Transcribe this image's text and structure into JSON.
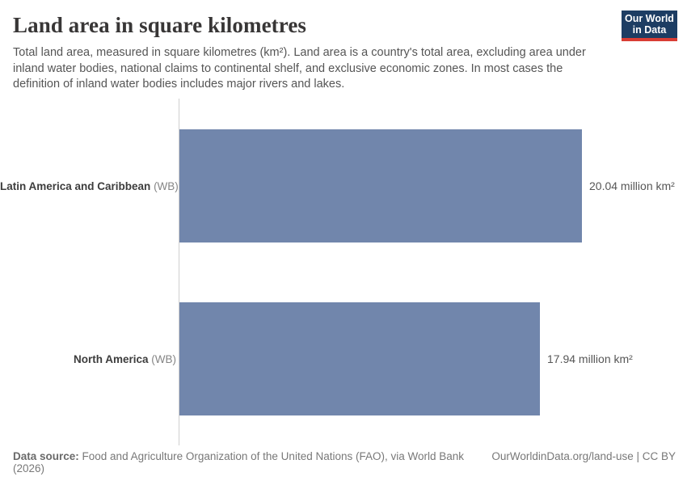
{
  "header": {
    "title": "Land area in square kilometres",
    "subtitle": "Total land area, measured in square kilometres (km²). Land area is a country's total area, excluding area under inland water bodies, national claims to continental shelf, and exclusive economic zones. In most cases the definition of inland water bodies includes major rivers and lakes.",
    "logo": {
      "line1": "Our World",
      "line2": "in Data"
    }
  },
  "chart_data": {
    "type": "bar",
    "orientation": "horizontal",
    "title": "Land area in square kilometres",
    "unit": "million km²",
    "grid": false,
    "xlim": [
      0,
      20.04
    ],
    "categories": [
      "Latin America and Caribbean (WB)",
      "North America (WB)"
    ],
    "values": [
      20.04,
      17.94
    ],
    "bar_color": "#7186ac",
    "series": [
      {
        "name": "Latin America and Caribbean",
        "suffix": " (WB)",
        "value": 20.04,
        "value_label": "20.04 million km²"
      },
      {
        "name": "North America",
        "suffix": " (WB)",
        "value": 17.94,
        "value_label": "17.94 million km²"
      }
    ]
  },
  "footer": {
    "source_label": "Data source:",
    "source_text": " Food and Agriculture Organization of the United Nations (FAO), via World Bank (2026)",
    "link_text": "OurWorldinData.org/land-use | CC BY"
  },
  "colors": {
    "bar": "#7186ac",
    "logo_bg": "#1d3d63",
    "logo_accent": "#d93d34",
    "axis_line": "#cfcfcf"
  }
}
